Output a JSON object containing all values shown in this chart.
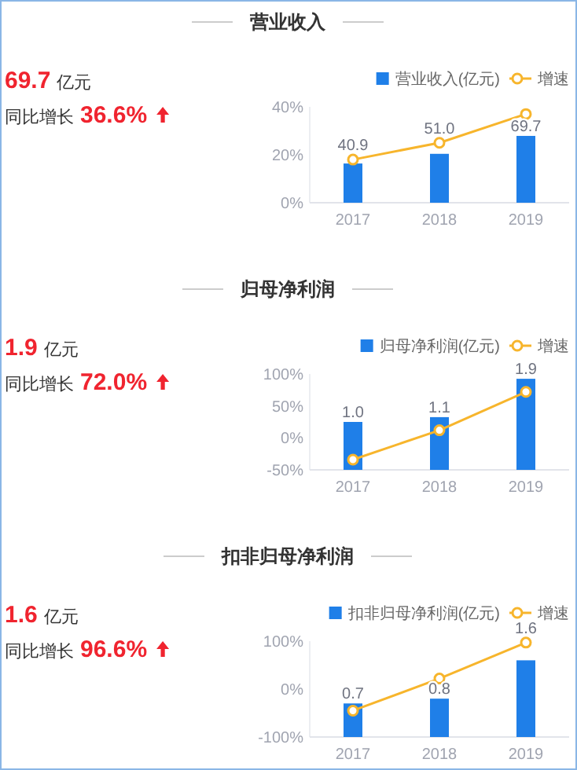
{
  "chart_data": [
    {
      "type": "bar",
      "title": "营业收入",
      "annotations": [
        "69.7",
        "亿元",
        "同比增长",
        "36.6%"
      ],
      "categories": [
        "2017",
        "2018",
        "2019"
      ],
      "series": [
        {
          "name": "营业收入(亿元)",
          "axis": "y2",
          "color": "#1f7fe8",
          "values": [
            40.9,
            51.0,
            69.7
          ],
          "value_labels": [
            "40.9",
            "51.0",
            "69.7"
          ]
        },
        {
          "name": "增速",
          "type": "line",
          "color": "#f7b52c",
          "values": [
            18,
            25,
            37
          ]
        }
      ],
      "ylim": [
        0,
        40
      ],
      "yticks": [
        {
          "value": 0,
          "label": "0%"
        },
        {
          "value": 20,
          "label": "20%"
        },
        {
          "value": 40,
          "label": "40%"
        }
      ],
      "y2lim": [
        0,
        100
      ],
      "legend": "top right",
      "marker": "circle"
    },
    {
      "type": "bar",
      "title": "归母净利润",
      "annotations": [
        "1.9",
        "亿元",
        "同比增长",
        "72.0%"
      ],
      "categories": [
        "2017",
        "2018",
        "2019"
      ],
      "series": [
        {
          "name": "归母净利润(亿元)",
          "axis": "y2",
          "color": "#1f7fe8",
          "values": [
            1.0,
            1.1,
            1.9
          ],
          "value_labels": [
            "1.0",
            "1.1",
            "1.9"
          ]
        },
        {
          "name": "增速",
          "type": "line",
          "color": "#f7b52c",
          "values": [
            -34,
            12,
            72
          ]
        }
      ],
      "ylim": [
        -50,
        100
      ],
      "yticks": [
        {
          "value": -50,
          "label": "-50%"
        },
        {
          "value": 0,
          "label": "0%"
        },
        {
          "value": 50,
          "label": "50%"
        },
        {
          "value": 100,
          "label": "100%"
        }
      ],
      "y2lim": [
        0,
        2
      ],
      "legend": "top right",
      "marker": "circle"
    },
    {
      "type": "bar",
      "title": "扣非归母净利润",
      "annotations": [
        "1.6",
        "亿元",
        "同比增长",
        "96.6%"
      ],
      "categories": [
        "2017",
        "2018",
        "2019"
      ],
      "series": [
        {
          "name": "扣非归母净利润(亿元)",
          "axis": "y2",
          "color": "#1f7fe8",
          "values": [
            0.7,
            0.8,
            1.6
          ],
          "value_labels": [
            "0.7",
            "0.8",
            "1.6"
          ]
        },
        {
          "name": "增速",
          "type": "line",
          "color": "#f7b52c",
          "values": [
            -45,
            22,
            97
          ]
        }
      ],
      "ylim": [
        -100,
        100
      ],
      "yticks": [
        {
          "value": -100,
          "label": "-100%"
        },
        {
          "value": 0,
          "label": "0%"
        },
        {
          "value": 100,
          "label": "100%"
        }
      ],
      "y2lim": [
        0,
        2
      ],
      "legend": "top right",
      "marker": "circle"
    }
  ]
}
